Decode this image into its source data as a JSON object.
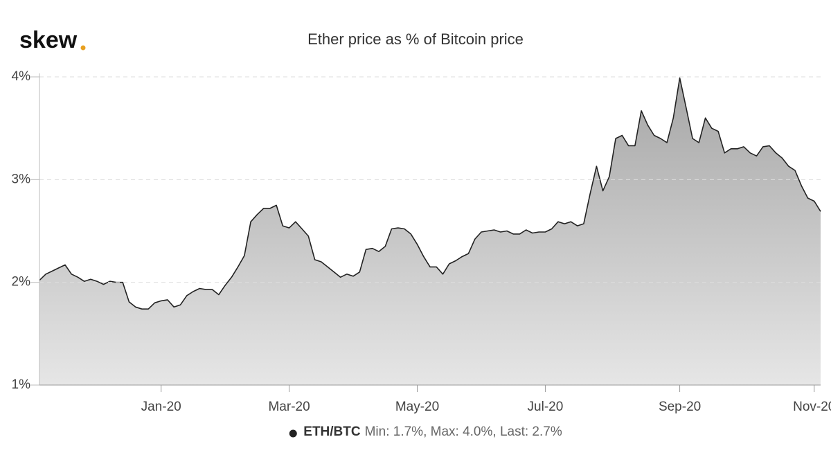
{
  "logo": "skew",
  "chart_data": {
    "type": "area",
    "title": "Ether price as % of Bitcoin price",
    "categories": [
      null,
      null,
      null,
      null,
      null,
      null,
      null,
      null,
      null,
      null,
      null,
      null,
      null,
      null,
      null,
      null,
      null,
      null,
      null,
      "Jan-20",
      null,
      null,
      null,
      null,
      null,
      null,
      null,
      null,
      null,
      null,
      null,
      null,
      null,
      null,
      null,
      null,
      null,
      null,
      null,
      "Mar-20",
      null,
      null,
      null,
      null,
      null,
      null,
      null,
      null,
      null,
      null,
      null,
      null,
      null,
      null,
      null,
      null,
      null,
      null,
      null,
      "May-20",
      null,
      null,
      null,
      null,
      null,
      null,
      null,
      null,
      null,
      null,
      null,
      null,
      null,
      null,
      null,
      null,
      null,
      null,
      null,
      "Jul-20",
      null,
      null,
      null,
      null,
      null,
      null,
      null,
      null,
      null,
      null,
      null,
      null,
      null,
      null,
      null,
      null,
      null,
      null,
      null,
      null,
      "Sep-20",
      null,
      null,
      null,
      null,
      null,
      null,
      null,
      null,
      null,
      null,
      null,
      null,
      null,
      null,
      null,
      null,
      null,
      null,
      null,
      null,
      "Nov-20",
      null
    ],
    "series": [
      {
        "name": "ETH/BTC",
        "summary": "Min: 1.7%, Max: 4.0%, Last: 2.7%",
        "color": "#222222",
        "values": [
          2.02,
          2.08,
          2.11,
          2.14,
          2.17,
          2.08,
          2.05,
          2.01,
          2.03,
          2.01,
          1.98,
          2.01,
          2.0,
          2.0,
          1.81,
          1.76,
          1.74,
          1.74,
          1.8,
          1.82,
          1.83,
          1.76,
          1.78,
          1.87,
          1.91,
          1.94,
          1.93,
          1.93,
          1.88,
          1.97,
          2.05,
          2.15,
          2.26,
          2.59,
          2.66,
          2.72,
          2.72,
          2.75,
          2.55,
          2.53,
          2.59,
          2.52,
          2.45,
          2.22,
          2.2,
          2.15,
          2.1,
          2.05,
          2.08,
          2.06,
          2.1,
          2.32,
          2.33,
          2.3,
          2.35,
          2.52,
          2.53,
          2.52,
          2.47,
          2.37,
          2.25,
          2.15,
          2.15,
          2.08,
          2.18,
          2.21,
          2.25,
          2.28,
          2.42,
          2.49,
          2.5,
          2.51,
          2.49,
          2.5,
          2.47,
          2.47,
          2.51,
          2.48,
          2.49,
          2.49,
          2.52,
          2.59,
          2.57,
          2.59,
          2.55,
          2.57,
          2.86,
          3.13,
          2.89,
          3.03,
          3.4,
          3.43,
          3.33,
          3.33,
          3.67,
          3.53,
          3.43,
          3.4,
          3.36,
          3.6,
          3.99,
          3.7,
          3.4,
          3.36,
          3.6,
          3.5,
          3.47,
          3.26,
          3.3,
          3.3,
          3.32,
          3.26,
          3.23,
          3.32,
          3.33,
          3.26,
          3.21,
          3.13,
          3.09,
          2.94,
          2.82,
          2.79,
          2.69
        ]
      }
    ],
    "ylim": [
      1,
      4
    ],
    "yticks": [
      {
        "value": 1,
        "label": "1%"
      },
      {
        "value": 2,
        "label": "2%"
      },
      {
        "value": 3,
        "label": "3%"
      },
      {
        "value": 4,
        "label": "4%"
      }
    ],
    "grid": true
  }
}
